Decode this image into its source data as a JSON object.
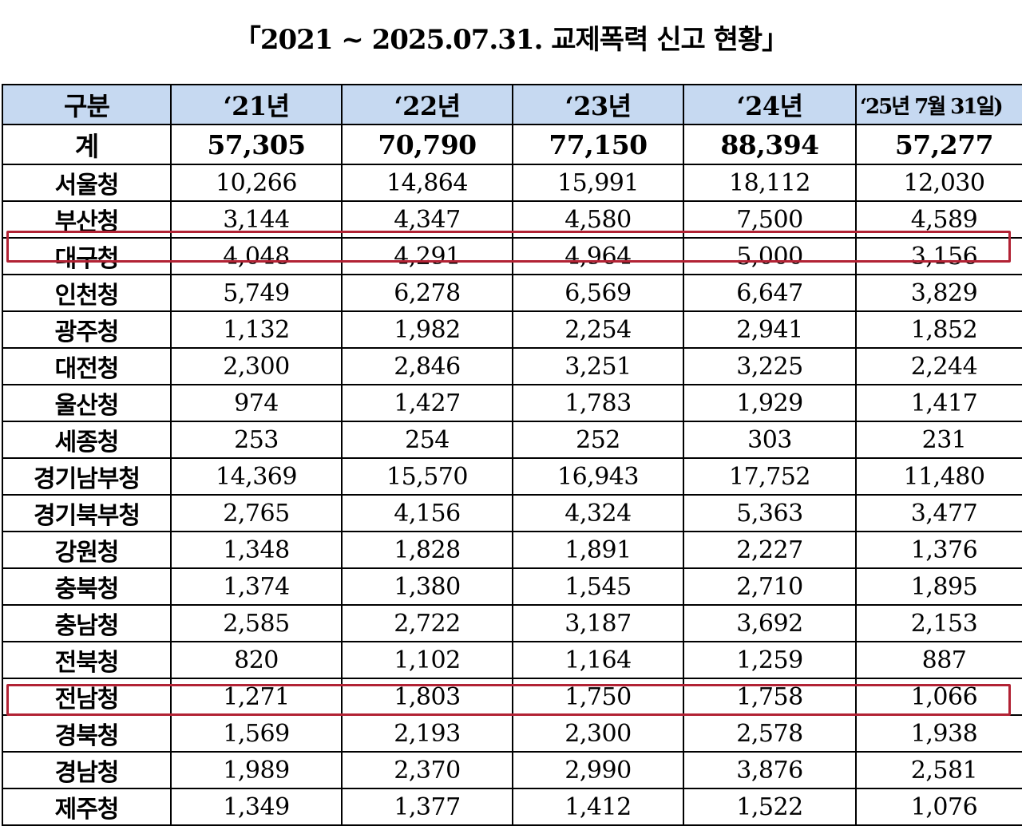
{
  "title": "「2021 ~ 2025.07.31. 교제폭력 신고 현황」",
  "header": [
    "구분",
    "‘21년",
    "‘22년",
    "‘23년",
    "‘24년",
    "‘25년 7월 31일)"
  ],
  "total": {
    "label": "계",
    "values": [
      "57,305",
      "70,790",
      "77,150",
      "88,394",
      "57,277"
    ]
  },
  "rows": [
    {
      "label": "서울청",
      "values": [
        "10,266",
        "14,864",
        "15,991",
        "18,112",
        "12,030"
      ]
    },
    {
      "label": "부산청",
      "values": [
        "3,144",
        "4,347",
        "4,580",
        "7,500",
        "4,589"
      ]
    },
    {
      "label": "대구청",
      "values": [
        "4,048",
        "4,291",
        "4,964",
        "5,000",
        "3,156"
      ]
    },
    {
      "label": "인천청",
      "values": [
        "5,749",
        "6,278",
        "6,569",
        "6,647",
        "3,829"
      ]
    },
    {
      "label": "광주청",
      "values": [
        "1,132",
        "1,982",
        "2,254",
        "2,941",
        "1,852"
      ]
    },
    {
      "label": "대전청",
      "values": [
        "2,300",
        "2,846",
        "3,251",
        "3,225",
        "2,244"
      ]
    },
    {
      "label": "울산청",
      "values": [
        "974",
        "1,427",
        "1,783",
        "1,929",
        "1,417"
      ]
    },
    {
      "label": "세종청",
      "values": [
        "253",
        "254",
        "252",
        "303",
        "231"
      ]
    },
    {
      "label": "경기남부청",
      "values": [
        "14,369",
        "15,570",
        "16,943",
        "17,752",
        "11,480"
      ]
    },
    {
      "label": "경기북부청",
      "values": [
        "2,765",
        "4,156",
        "4,324",
        "5,363",
        "3,477"
      ]
    },
    {
      "label": "강원청",
      "values": [
        "1,348",
        "1,828",
        "1,891",
        "2,227",
        "1,376"
      ]
    },
    {
      "label": "충북청",
      "values": [
        "1,374",
        "1,380",
        "1,545",
        "2,710",
        "1,895"
      ]
    },
    {
      "label": "충남청",
      "values": [
        "2,585",
        "2,722",
        "3,187",
        "3,692",
        "2,153"
      ]
    },
    {
      "label": "전북청",
      "values": [
        "820",
        "1,102",
        "1,164",
        "1,259",
        "887"
      ]
    },
    {
      "label": "전남청",
      "values": [
        "1,271",
        "1,803",
        "1,750",
        "1,758",
        "1,066"
      ]
    },
    {
      "label": "경북청",
      "values": [
        "1,569",
        "2,193",
        "2,300",
        "2,578",
        "1,938"
      ]
    },
    {
      "label": "경남청",
      "values": [
        "1,989",
        "2,370",
        "2,990",
        "3,876",
        "2,581"
      ]
    },
    {
      "label": "제주청",
      "values": [
        "1,349",
        "1,377",
        "1,412",
        "1,522",
        "1,076"
      ]
    }
  ],
  "highlight_color": "#b22234"
}
